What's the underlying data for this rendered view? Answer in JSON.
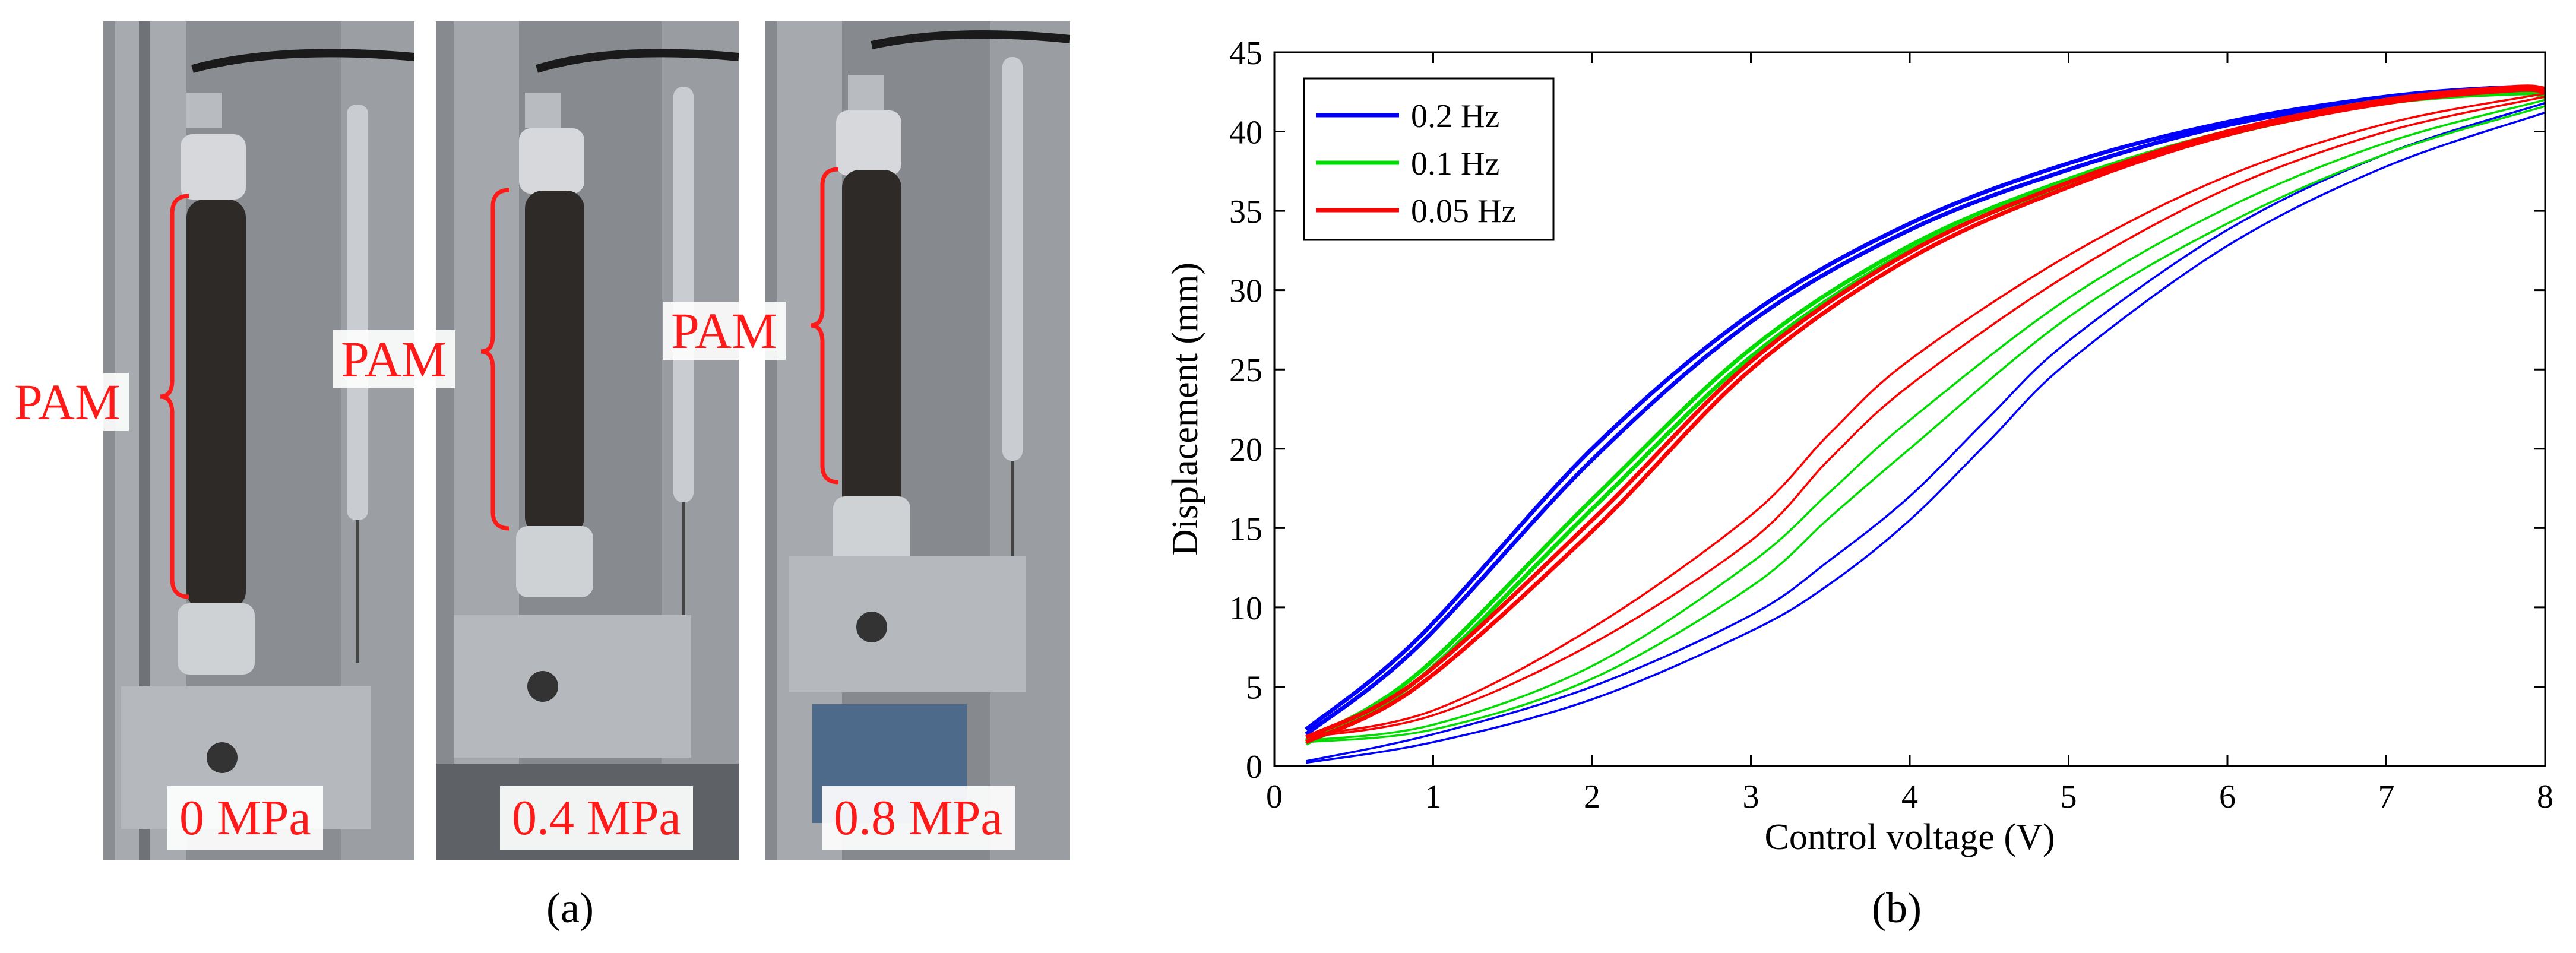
{
  "figure": {
    "panel_a_caption": "(a)",
    "panel_b_caption": "(b)"
  },
  "photos": [
    {
      "pam_label": "PAM",
      "pressure_label": "0 MPa"
    },
    {
      "pam_label": "PAM",
      "pressure_label": "0.4 MPa"
    },
    {
      "pam_label": "PAM",
      "pressure_label": "0.8 MPa"
    }
  ],
  "colors": {
    "series_0_2hz": "#0000ff",
    "series_0_1hz": "#00dd00",
    "series_0_05hz": "#ff0000",
    "annotation_red": "#ff1a1a"
  },
  "chart_data": {
    "type": "line",
    "title": "",
    "xlabel": "Control voltage (V)",
    "ylabel": "Displacement (mm)",
    "xlim": [
      0,
      8
    ],
    "ylim": [
      0,
      45
    ],
    "xticks": [
      "0",
      "1",
      "2",
      "3",
      "4",
      "5",
      "6",
      "7",
      "8"
    ],
    "yticks": [
      "0",
      "5",
      "10",
      "15",
      "20",
      "25",
      "30",
      "35",
      "40",
      "45"
    ],
    "legend_position": "top-left",
    "grid": false,
    "series": [
      {
        "name": "0.2 Hz",
        "color": "#0000ff",
        "loading": [
          {
            "x": [
              0.2,
              0.9,
              2,
              3,
              4,
              5,
              6,
              7,
              7.8,
              8
            ],
            "y": [
              2.3,
              8,
              20,
              28.5,
              34.2,
              38,
              40.6,
              42.2,
              42.8,
              42.6
            ]
          },
          {
            "x": [
              0.2,
              0.9,
              2,
              3,
              4,
              5,
              6,
              7,
              7.8,
              8
            ],
            "y": [
              2.0,
              7.5,
              19.3,
              28,
              33.8,
              37.6,
              40.4,
              42,
              42.5,
              42.4
            ]
          }
        ],
        "unloading": [
          {
            "x": [
              8,
              7,
              6,
              5,
              4.5,
              4,
              3.5,
              3,
              2,
              1,
              0.2
            ],
            "y": [
              41.2,
              37.8,
              32.8,
              25.5,
              20.5,
              15.5,
              11.5,
              8.5,
              4.2,
              1.5,
              0.2
            ]
          },
          {
            "x": [
              8,
              7,
              6,
              5,
              4.5,
              4,
              3.5,
              3,
              2,
              1,
              0.2
            ],
            "y": [
              41.8,
              38.6,
              33.8,
              26.8,
              22,
              17,
              13,
              9.5,
              5,
              2,
              0.3
            ]
          }
        ]
      },
      {
        "name": "0.1 Hz",
        "color": "#00dd00",
        "loading": [
          {
            "x": [
              0.2,
              0.9,
              2,
              3,
              4,
              5,
              6,
              7,
              7.8,
              8
            ],
            "y": [
              1.6,
              5.8,
              16.8,
              26.3,
              32.8,
              37,
              40,
              42,
              42.6,
              42.4
            ]
          },
          {
            "x": [
              0.2,
              0.9,
              2,
              3,
              4,
              5,
              6,
              7,
              7.8,
              8
            ],
            "y": [
              1.4,
              5.4,
              16.2,
              25.8,
              32.5,
              36.7,
              39.8,
              41.8,
              42.4,
              42.2
            ]
          }
        ],
        "unloading": [
          {
            "x": [
              8,
              7,
              6,
              5,
              4,
              3.5,
              3,
              2,
              1,
              0.2
            ],
            "y": [
              41.6,
              38.6,
              34.2,
              28.3,
              20,
              15.7,
              11.3,
              5.5,
              2.3,
              1.5
            ]
          },
          {
            "x": [
              8,
              7,
              6,
              5,
              4,
              3.5,
              3,
              2,
              1,
              0.2
            ],
            "y": [
              42,
              39.3,
              35.2,
              29.5,
              21.8,
              17.3,
              12.8,
              6.3,
              2.6,
              1.6
            ]
          }
        ]
      },
      {
        "name": "0.05 Hz",
        "color": "#ff0000",
        "loading": [
          {
            "x": [
              0.2,
              0.9,
              2,
              3,
              4,
              5,
              6,
              7,
              7.8,
              8
            ],
            "y": [
              1.8,
              5.4,
              15.5,
              25.5,
              32.4,
              36.8,
              40,
              42,
              42.8,
              42.7
            ]
          },
          {
            "x": [
              0.2,
              0.9,
              2,
              3,
              4,
              5,
              6,
              7,
              7.8,
              8
            ],
            "y": [
              1.5,
              5,
              14.8,
              25,
              32,
              36.5,
              39.8,
              41.8,
              42.6,
              42.5
            ]
          }
        ],
        "unloading": [
          {
            "x": [
              8,
              7,
              6,
              5,
              4,
              3.5,
              3,
              2,
              1,
              0.2
            ],
            "y": [
              42.2,
              40,
              36.4,
              31,
              24,
              19.4,
              14.2,
              7.7,
              3.2,
              1.8
            ]
          },
          {
            "x": [
              8,
              7,
              6,
              5,
              4,
              3.5,
              3,
              2,
              1,
              0.2
            ],
            "y": [
              42.4,
              40.5,
              37.2,
              32.2,
              25.6,
              21,
              15.8,
              8.7,
              3.5,
              1.9
            ]
          }
        ]
      }
    ]
  }
}
